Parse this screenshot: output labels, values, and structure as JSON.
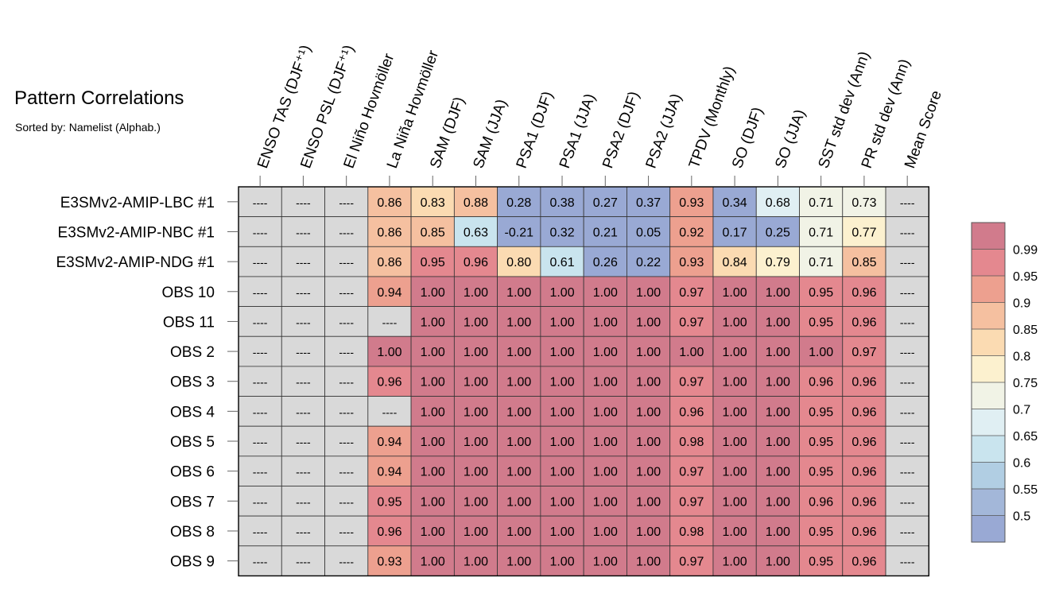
{
  "chart_data": {
    "type": "heatmap",
    "title": "Pattern Correlations",
    "subtitle": "Sorted by: Namelist (Alphab.)",
    "columns": [
      "ENSO TAS (DJF⁺¹)",
      "ENSO PSL (DJF⁺¹)",
      "El Niño Hovmöller",
      "La Niña Hovmöller",
      "SAM (DJF)",
      "SAM (JJA)",
      "PSA1 (DJF)",
      "PSA1 (JJA)",
      "PSA2 (DJF)",
      "PSA2 (JJA)",
      "TPDV (Monthly)",
      "SO (DJF)",
      "SO (JJA)",
      "SST std dev (Ann)",
      "PR std dev (Ann)",
      "Mean Score"
    ],
    "rows": [
      "E3SMv2-AMIP-LBC #1",
      "E3SMv2-AMIP-NBC #1",
      "E3SMv2-AMIP-NDG #1",
      "OBS 10",
      "OBS 11",
      "OBS 2",
      "OBS 3",
      "OBS 4",
      "OBS 5",
      "OBS 6",
      "OBS 7",
      "OBS 8",
      "OBS 9"
    ],
    "missing_label": "----",
    "values": [
      [
        null,
        null,
        null,
        "0.86",
        "0.83",
        "0.88",
        "0.28",
        "0.38",
        "0.27",
        "0.37",
        "0.93",
        "0.34",
        "0.68",
        "0.71",
        "0.73",
        null
      ],
      [
        null,
        null,
        null,
        "0.86",
        "0.85",
        "0.63",
        "-0.21",
        "0.32",
        "0.21",
        "0.05",
        "0.92",
        "0.17",
        "0.25",
        "0.71",
        "0.77",
        null
      ],
      [
        null,
        null,
        null,
        "0.86",
        "0.95",
        "0.96",
        "0.80",
        "0.61",
        "0.26",
        "0.22",
        "0.93",
        "0.84",
        "0.79",
        "0.71",
        "0.85",
        null
      ],
      [
        null,
        null,
        null,
        "0.94",
        "1.00",
        "1.00",
        "1.00",
        "1.00",
        "1.00",
        "1.00",
        "0.97",
        "1.00",
        "1.00",
        "0.95",
        "0.96",
        null
      ],
      [
        null,
        null,
        null,
        null,
        "1.00",
        "1.00",
        "1.00",
        "1.00",
        "1.00",
        "1.00",
        "0.97",
        "1.00",
        "1.00",
        "0.95",
        "0.96",
        null
      ],
      [
        null,
        null,
        null,
        "1.00",
        "1.00",
        "1.00",
        "1.00",
        "1.00",
        "1.00",
        "1.00",
        "1.00",
        "1.00",
        "1.00",
        "1.00",
        "0.97",
        null
      ],
      [
        null,
        null,
        null,
        "0.96",
        "1.00",
        "1.00",
        "1.00",
        "1.00",
        "1.00",
        "1.00",
        "0.97",
        "1.00",
        "1.00",
        "0.96",
        "0.96",
        null
      ],
      [
        null,
        null,
        null,
        null,
        "1.00",
        "1.00",
        "1.00",
        "1.00",
        "1.00",
        "1.00",
        "0.96",
        "1.00",
        "1.00",
        "0.95",
        "0.96",
        null
      ],
      [
        null,
        null,
        null,
        "0.94",
        "1.00",
        "1.00",
        "1.00",
        "1.00",
        "1.00",
        "1.00",
        "0.98",
        "1.00",
        "1.00",
        "0.95",
        "0.96",
        null
      ],
      [
        null,
        null,
        null,
        "0.94",
        "1.00",
        "1.00",
        "1.00",
        "1.00",
        "1.00",
        "1.00",
        "0.97",
        "1.00",
        "1.00",
        "0.95",
        "0.96",
        null
      ],
      [
        null,
        null,
        null,
        "0.95",
        "1.00",
        "1.00",
        "1.00",
        "1.00",
        "1.00",
        "1.00",
        "0.97",
        "1.00",
        "1.00",
        "0.96",
        "0.96",
        null
      ],
      [
        null,
        null,
        null,
        "0.96",
        "1.00",
        "1.00",
        "1.00",
        "1.00",
        "1.00",
        "1.00",
        "0.98",
        "1.00",
        "1.00",
        "0.95",
        "0.96",
        null
      ],
      [
        null,
        null,
        null,
        "0.93",
        "1.00",
        "1.00",
        "1.00",
        "1.00",
        "1.00",
        "1.00",
        "0.97",
        "1.00",
        "1.00",
        "0.95",
        "0.96",
        null
      ]
    ],
    "colorbar": {
      "levels": [
        "0.99",
        "0.95",
        "0.9",
        "0.85",
        "0.8",
        "0.75",
        "0.7",
        "0.65",
        "0.6",
        "0.55",
        "0.5"
      ],
      "colors": [
        "#d17b8c",
        "#e4888f",
        "#eda08f",
        "#f5c0a0",
        "#fbdbb2",
        "#fcf1cf",
        "#f1f3e6",
        "#e0eff3",
        "#c9e4ee",
        "#b1cee3",
        "#a3b7d9",
        "#99a9d4"
      ],
      "missing_color": "#d9d9d9"
    }
  }
}
